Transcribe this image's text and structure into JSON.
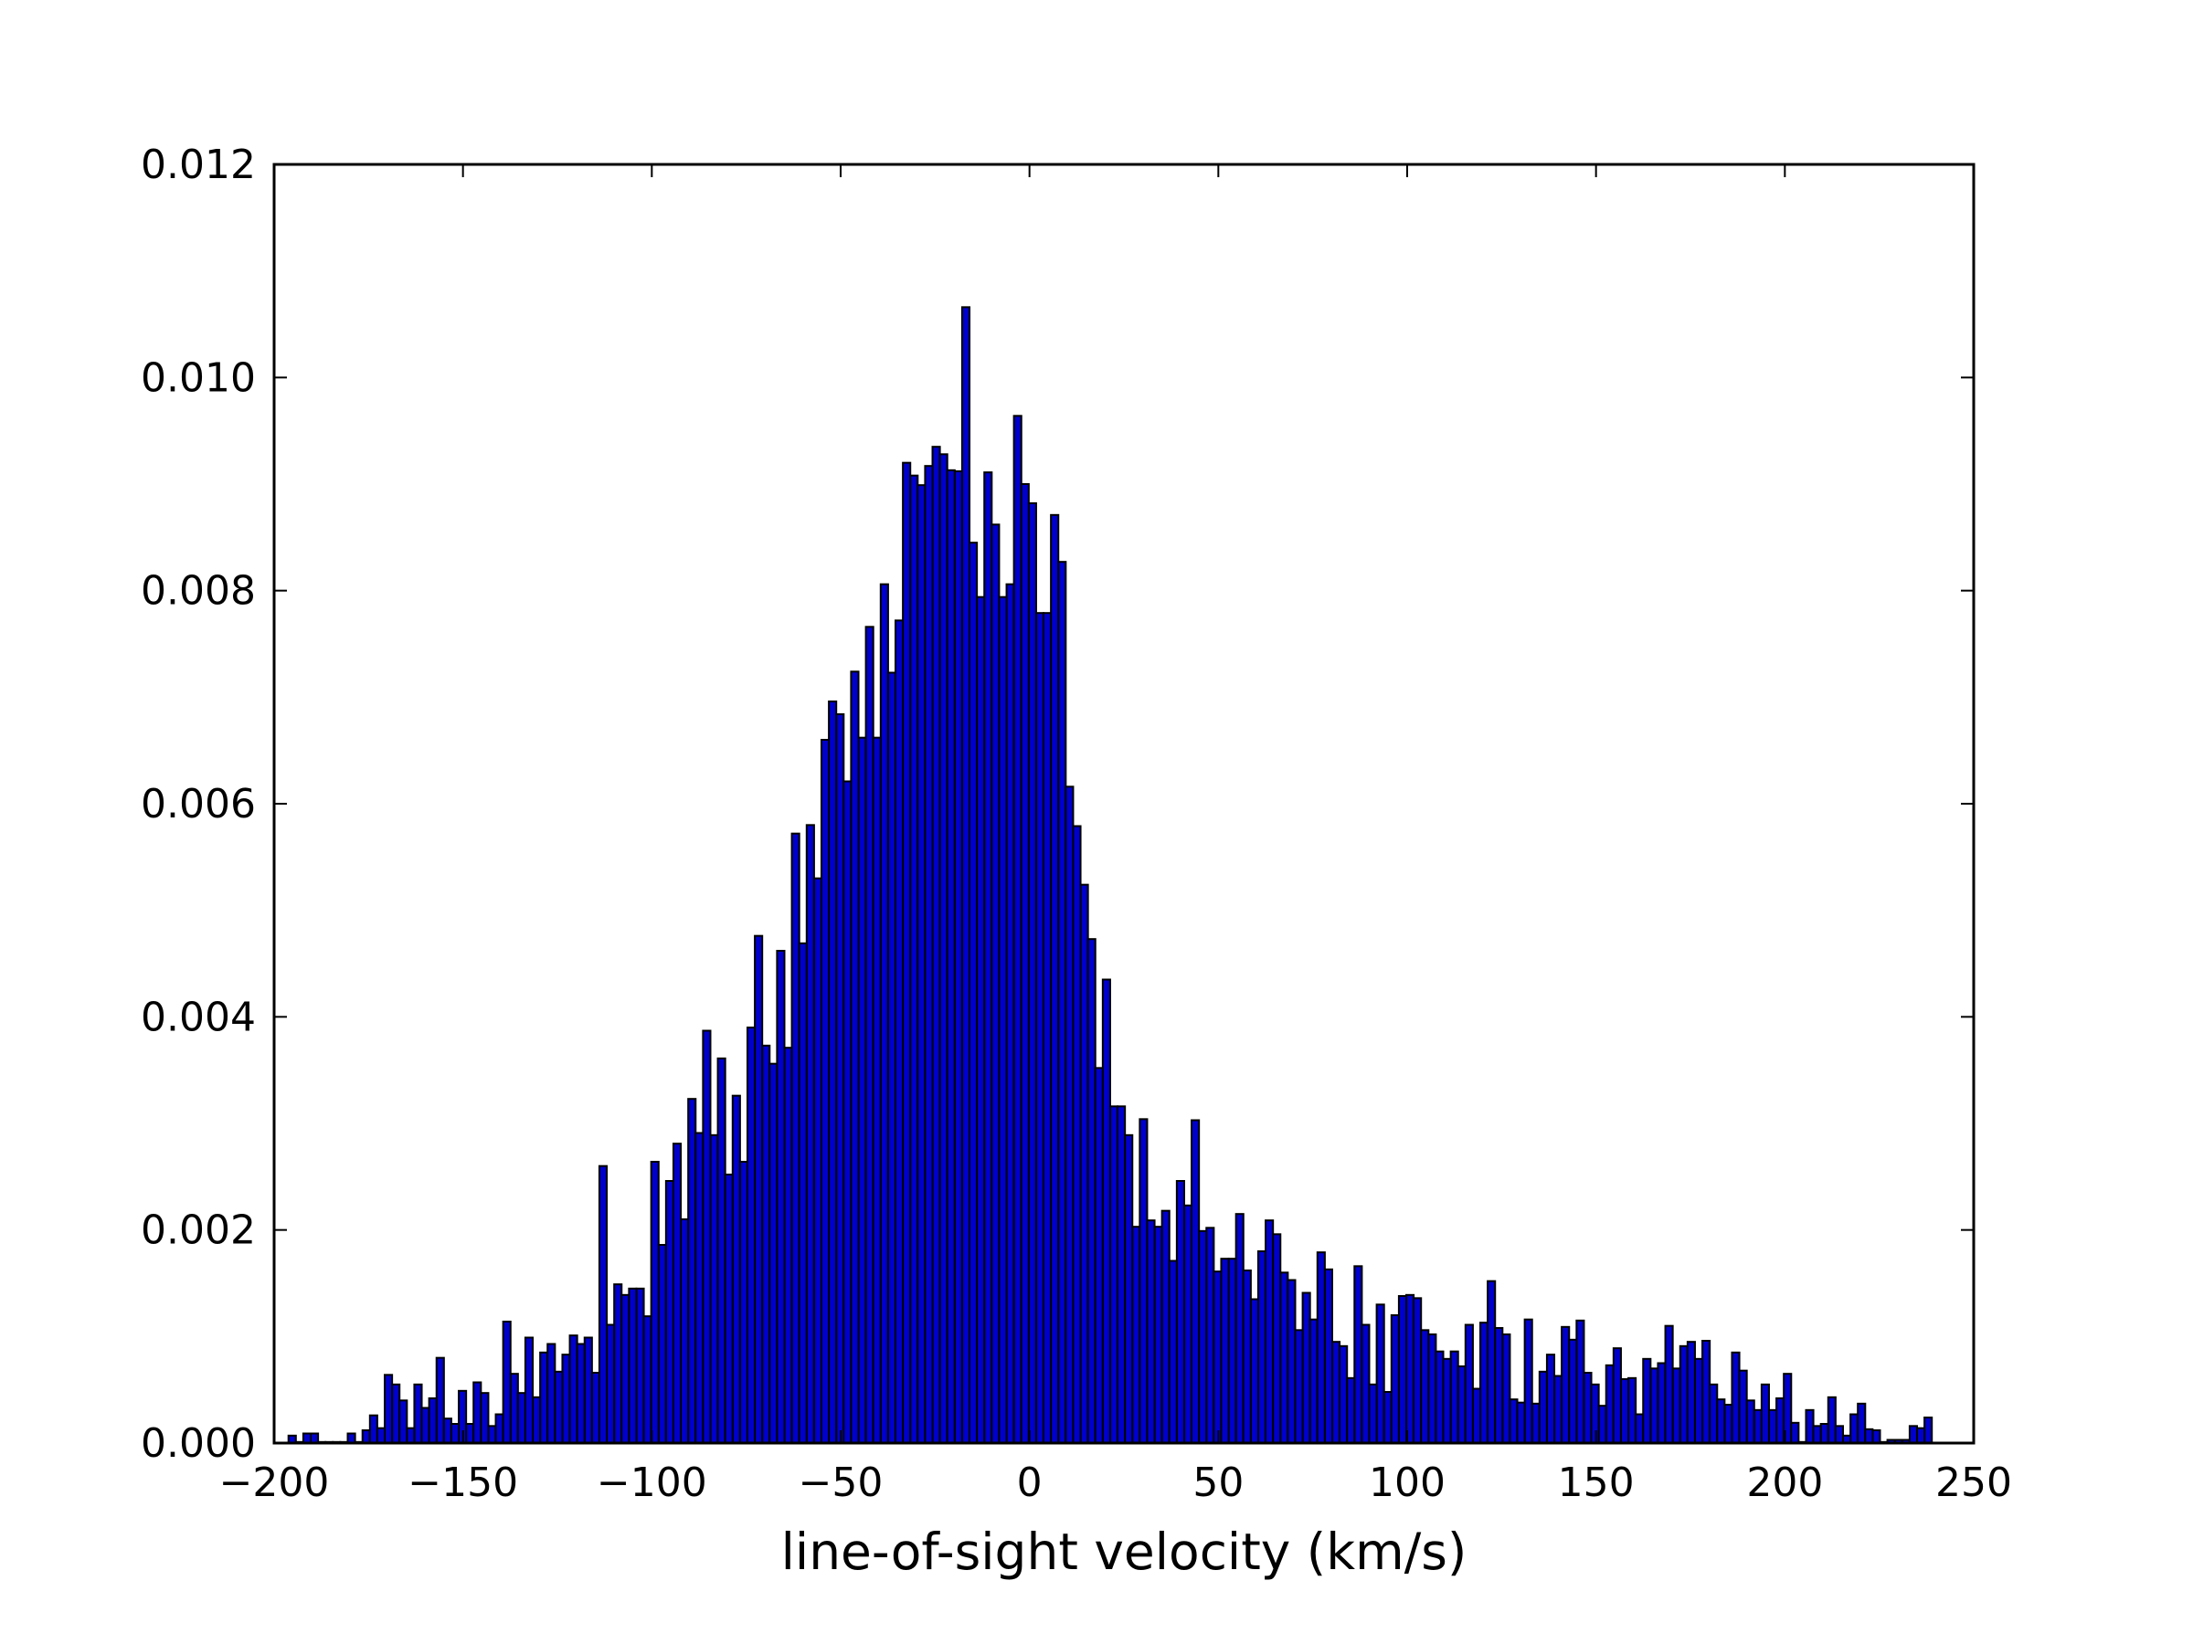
{
  "chart_data": {
    "type": "bar",
    "title": "",
    "xlabel": "line-of-sight velocity (km/s)",
    "ylabel": "",
    "xlim": [
      -200,
      250
    ],
    "ylim": [
      0,
      0.012
    ],
    "grid": false,
    "legend": "none",
    "x_ticks": [
      -200,
      -150,
      -100,
      -50,
      0,
      50,
      100,
      150,
      200,
      250
    ],
    "x_tick_labels": [
      "−200",
      "−150",
      "−100",
      "−50",
      "0",
      "50",
      "100",
      "150",
      "200",
      "250"
    ],
    "y_ticks": [
      0,
      0.002,
      0.004,
      0.006,
      0.008,
      0.01,
      0.012
    ],
    "y_tick_labels": [
      "0.000",
      "0.002",
      "0.004",
      "0.006",
      "0.008",
      "0.010",
      "0.012"
    ],
    "bar_color": "#0000cc",
    "bin_start": -196.2,
    "bin_width": 1.96,
    "values": [
      7e-05,
      1e-05,
      9e-05,
      9e-05,
      1e-05,
      1e-05,
      1e-05,
      1e-05,
      9e-05,
      1e-05,
      0.00012,
      0.00026,
      0.00014,
      0.00064,
      0.00055,
      0.0004,
      0.00014,
      0.00055,
      0.00033,
      0.00042,
      0.0008,
      0.00023,
      0.00018,
      0.00049,
      0.00018,
      0.00057,
      0.00047,
      0.00016,
      0.00027,
      0.00114,
      0.00065,
      0.00047,
      0.00099,
      0.00043,
      0.00085,
      0.00093,
      0.00067,
      0.00083,
      0.00101,
      0.00093,
      0.00099,
      0.00066,
      0.0026,
      0.00111,
      0.00149,
      0.00139,
      0.00145,
      0.00145,
      0.00119,
      0.00264,
      0.00186,
      0.00246,
      0.00281,
      0.0021,
      0.00323,
      0.00291,
      0.00387,
      0.00289,
      0.00361,
      0.00252,
      0.00326,
      0.00264,
      0.0039,
      0.00476,
      0.00373,
      0.00356,
      0.00462,
      0.00371,
      0.00572,
      0.00469,
      0.0058,
      0.0053,
      0.0066,
      0.00696,
      0.00684,
      0.00621,
      0.00724,
      0.00662,
      0.00766,
      0.00662,
      0.00806,
      0.00723,
      0.00772,
      0.0092,
      0.00908,
      0.00899,
      0.00917,
      0.00935,
      0.00928,
      0.00913,
      0.00912,
      0.01066,
      0.00845,
      0.00794,
      0.00911,
      0.00862,
      0.00794,
      0.00806,
      0.00964,
      0.009,
      0.00882,
      0.00779,
      0.00779,
      0.00871,
      0.00827,
      0.00616,
      0.00579,
      0.00524,
      0.00473,
      0.00352,
      0.00435,
      0.00316,
      0.00316,
      0.00289,
      0.00203,
      0.00304,
      0.00209,
      0.00203,
      0.00218,
      0.00171,
      0.00246,
      0.00223,
      0.00303,
      0.00199,
      0.00202,
      0.00161,
      0.00173,
      0.00173,
      0.00215,
      0.00162,
      0.00135,
      0.0018,
      0.00209,
      0.00196,
      0.0016,
      0.00153,
      0.00106,
      0.00141,
      0.00116,
      0.00179,
      0.00163,
      0.00095,
      0.00091,
      0.00061,
      0.00166,
      0.00111,
      0.00055,
      0.0013,
      0.00048,
      0.0012,
      0.00138,
      0.00139,
      0.00136,
      0.00106,
      0.00102,
      0.00086,
      0.00079,
      0.00086,
      0.00072,
      0.00111,
      0.00051,
      0.00113,
      0.00152,
      0.00108,
      0.00102,
      0.00041,
      0.00038,
      0.00116,
      0.00037,
      0.00067,
      0.00083,
      0.00063,
      0.00109,
      0.00097,
      0.00115,
      0.00066,
      0.00055,
      0.00035,
      0.00073,
      0.00089,
      0.0006,
      0.00061,
      0.00027,
      0.00079,
      0.0007,
      0.00075,
      0.0011,
      0.0007,
      0.00091,
      0.00095,
      0.00079,
      0.00096,
      0.00055,
      0.00041,
      0.00036,
      0.00085,
      0.00068,
      0.0004,
      0.00031,
      0.00055,
      0.00031,
      0.00042,
      0.00065,
      0.00019,
      1e-05,
      0.00031,
      0.00016,
      0.00018,
      0.00043,
      0.00016,
      7e-05,
      0.00027,
      0.00037,
      0.00013,
      0.00012,
      1e-05,
      3e-05,
      3e-05,
      3e-05,
      0.00016,
      0.00014,
      0.00024
    ]
  }
}
